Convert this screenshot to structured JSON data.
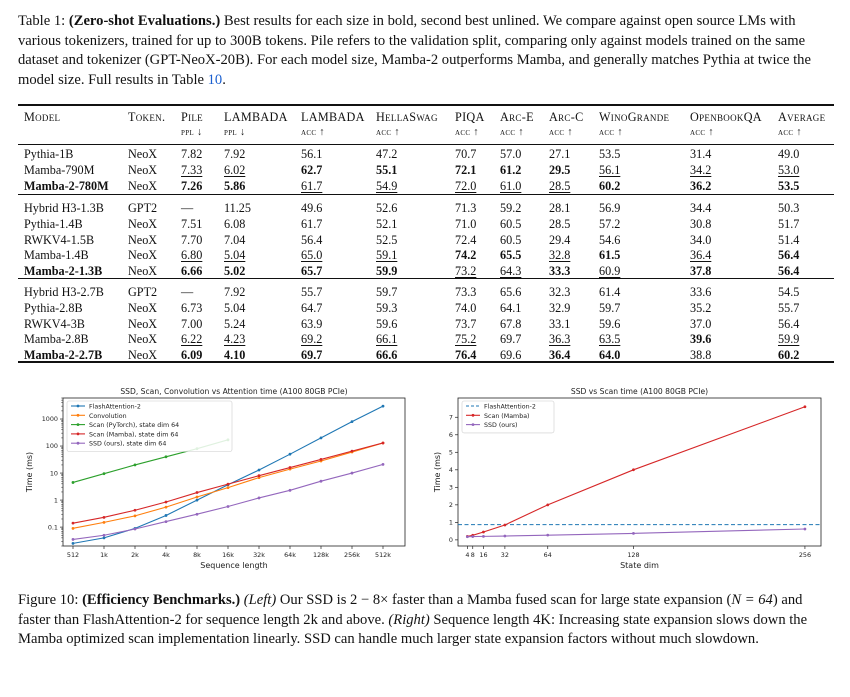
{
  "table_caption": {
    "label": "Table 1: ",
    "bold_title": "(Zero-shot Evaluations.)",
    "body": " Best results for each size in bold, second best unlined. We compare against open source LMs with various tokenizers, trained for up to 300B tokens. Pile refers to the validation split, comparing only against models trained on the same dataset and tokenizer (GPT-NeoX-20B). For each model size, Mamba-2 outperforms Mamba, and generally matches Pythia at twice the model size. Full results in Table ",
    "ref": "10",
    "end": "."
  },
  "table": {
    "headers": [
      {
        "top": "Model",
        "sub": ""
      },
      {
        "top": "Token.",
        "sub": ""
      },
      {
        "top": "Pile",
        "sub": "ppl ↓"
      },
      {
        "top": "LAMBADA",
        "sub": "ppl ↓"
      },
      {
        "top": "LAMBADA",
        "sub": "acc ↑"
      },
      {
        "top": "HellaSwag",
        "sub": "acc ↑"
      },
      {
        "top": "PIQA",
        "sub": "acc ↑"
      },
      {
        "top": "Arc-E",
        "sub": "acc ↑"
      },
      {
        "top": "Arc-C",
        "sub": "acc ↑"
      },
      {
        "top": "WinoGrande",
        "sub": "acc ↑"
      },
      {
        "top": "OpenbookQA",
        "sub": "acc ↑"
      },
      {
        "top": "Average",
        "sub": "acc ↑"
      }
    ],
    "groups": [
      [
        {
          "cells": [
            "Pythia-1B",
            "NeoX",
            "7.82",
            "7.92",
            "56.1",
            "47.2",
            "70.7",
            "57.0",
            "27.1",
            "53.5",
            "31.4",
            "49.0"
          ],
          "bold": [],
          "underline": []
        },
        {
          "cells": [
            "Mamba-790M",
            "NeoX",
            "7.33",
            "6.02",
            "62.7",
            "55.1",
            "72.1",
            "61.2",
            "29.5",
            "56.1",
            "34.2",
            "53.0"
          ],
          "bold": [
            4,
            5,
            6,
            7,
            8
          ],
          "underline": [
            2,
            3,
            9,
            10,
            11
          ]
        },
        {
          "cells": [
            "Mamba-2-780M",
            "NeoX",
            "7.26",
            "5.86",
            "61.7",
            "54.9",
            "72.0",
            "61.0",
            "28.5",
            "60.2",
            "36.2",
            "53.5"
          ],
          "bold": [
            0,
            2,
            3,
            9,
            10,
            11
          ],
          "underline": [
            4,
            5,
            6,
            7,
            8
          ]
        }
      ],
      [
        {
          "cells": [
            "Hybrid H3-1.3B",
            "GPT2",
            "—",
            "11.25",
            "49.6",
            "52.6",
            "71.3",
            "59.2",
            "28.1",
            "56.9",
            "34.4",
            "50.3"
          ],
          "bold": [],
          "underline": []
        },
        {
          "cells": [
            "Pythia-1.4B",
            "NeoX",
            "7.51",
            "6.08",
            "61.7",
            "52.1",
            "71.0",
            "60.5",
            "28.5",
            "57.2",
            "30.8",
            "51.7"
          ],
          "bold": [],
          "underline": []
        },
        {
          "cells": [
            "RWKV4-1.5B",
            "NeoX",
            "7.70",
            "7.04",
            "56.4",
            "52.5",
            "72.4",
            "60.5",
            "29.4",
            "54.6",
            "34.0",
            "51.4"
          ],
          "bold": [],
          "underline": []
        },
        {
          "cells": [
            "Mamba-1.4B",
            "NeoX",
            "6.80",
            "5.04",
            "65.0",
            "59.1",
            "74.2",
            "65.5",
            "32.8",
            "61.5",
            "36.4",
            "56.4"
          ],
          "bold": [
            6,
            7,
            9,
            11
          ],
          "underline": [
            2,
            3,
            4,
            5,
            8,
            10
          ]
        },
        {
          "cells": [
            "Mamba-2-1.3B",
            "NeoX",
            "6.66",
            "5.02",
            "65.7",
            "59.9",
            "73.2",
            "64.3",
            "33.3",
            "60.9",
            "37.8",
            "56.4"
          ],
          "bold": [
            0,
            2,
            3,
            4,
            5,
            8,
            10,
            11
          ],
          "underline": [
            6,
            7,
            9
          ]
        }
      ],
      [
        {
          "cells": [
            "Hybrid H3-2.7B",
            "GPT2",
            "—",
            "7.92",
            "55.7",
            "59.7",
            "73.3",
            "65.6",
            "32.3",
            "61.4",
            "33.6",
            "54.5"
          ],
          "bold": [],
          "underline": []
        },
        {
          "cells": [
            "Pythia-2.8B",
            "NeoX",
            "6.73",
            "5.04",
            "64.7",
            "59.3",
            "74.0",
            "64.1",
            "32.9",
            "59.7",
            "35.2",
            "55.7"
          ],
          "bold": [],
          "underline": []
        },
        {
          "cells": [
            "RWKV4-3B",
            "NeoX",
            "7.00",
            "5.24",
            "63.9",
            "59.6",
            "73.7",
            "67.8",
            "33.1",
            "59.6",
            "37.0",
            "56.4"
          ],
          "bold": [],
          "underline": []
        },
        {
          "cells": [
            "Mamba-2.8B",
            "NeoX",
            "6.22",
            "4.23",
            "69.2",
            "66.1",
            "75.2",
            "69.7",
            "36.3",
            "63.5",
            "39.6",
            "59.9"
          ],
          "bold": [
            10
          ],
          "underline": [
            2,
            3,
            4,
            5,
            6,
            8,
            9,
            11
          ]
        },
        {
          "cells": [
            "Mamba-2-2.7B",
            "NeoX",
            "6.09",
            "4.10",
            "69.7",
            "66.6",
            "76.4",
            "69.6",
            "36.4",
            "64.0",
            "38.8",
            "60.2"
          ],
          "bold": [
            0,
            2,
            3,
            4,
            5,
            6,
            8,
            9,
            11
          ],
          "underline": [
            7,
            10
          ]
        }
      ]
    ]
  },
  "chart_data": [
    {
      "type": "line",
      "title": "SSD, Scan, Convolution vs Attention time (A100 80GB PCIe)",
      "xlabel": "Sequence length",
      "ylabel": "Time (ms)",
      "yscale": "log",
      "xscale": "log2",
      "categories": [
        "512",
        "1k",
        "2k",
        "4k",
        "8k",
        "16k",
        "32k",
        "64k",
        "128k",
        "256k",
        "512k"
      ],
      "yticks": [
        "0.1",
        "1",
        "10",
        "100",
        "1000"
      ],
      "legend": "top-left",
      "series": [
        {
          "name": "FlashAttention-2",
          "color": "#1f77b4",
          "values": [
            0.025,
            0.04,
            0.09,
            0.27,
            1.0,
            3.7,
            13,
            50,
            200,
            800,
            3000
          ]
        },
        {
          "name": "Convolution",
          "color": "#ff7f0e",
          "values": [
            0.09,
            0.15,
            0.26,
            0.55,
            1.3,
            2.9,
            6.8,
            14,
            28,
            60,
            130
          ]
        },
        {
          "name": "Scan (PyTorch), state dim 64",
          "color": "#2ca02c",
          "values": [
            4.5,
            9.5,
            20,
            40,
            80,
            170,
            null,
            null,
            null,
            null,
            null
          ]
        },
        {
          "name": "Scan (Mamba), state dim 64",
          "color": "#d62728",
          "values": [
            0.14,
            0.23,
            0.42,
            0.85,
            1.9,
            3.9,
            8,
            16,
            32,
            65,
            130
          ]
        },
        {
          "name": "SSD (ours), state dim 64",
          "color": "#9467bd",
          "values": [
            0.035,
            0.05,
            0.085,
            0.16,
            0.3,
            0.58,
            1.2,
            2.3,
            5,
            10,
            21
          ]
        }
      ]
    },
    {
      "type": "line",
      "title": "SSD vs Scan time (A100 80GB PCIe)",
      "xlabel": "State dim",
      "ylabel": "Time (ms)",
      "xticks": [
        4,
        8,
        16,
        32,
        64,
        128,
        256
      ],
      "yticks": [
        0,
        1,
        2,
        3,
        4,
        5,
        6,
        7
      ],
      "xlim": [
        -3,
        268
      ],
      "ylim": [
        -0.35,
        8.1
      ],
      "legend": "top-left",
      "series": [
        {
          "name": "FlashAttention-2",
          "color": "#1f77b4",
          "dashed": true,
          "constant": 0.87
        },
        {
          "name": "Scan (Mamba)",
          "color": "#d62728",
          "x": [
            4,
            8,
            16,
            32,
            64,
            128,
            256
          ],
          "values": [
            0.2,
            0.26,
            0.45,
            0.85,
            2.0,
            4.0,
            7.6
          ]
        },
        {
          "name": "SSD (ours)",
          "color": "#9467bd",
          "x": [
            4,
            8,
            16,
            32,
            64,
            128,
            256
          ],
          "values": [
            0.18,
            0.19,
            0.2,
            0.22,
            0.27,
            0.37,
            0.62
          ]
        }
      ]
    }
  ],
  "figure_caption": {
    "label": "Figure 10: ",
    "bold_title": "(Efficiency Benchmarks.)",
    "left": "(Left)",
    "p1": " Our SSD is 2 − 8× faster than a Mamba fused scan for large state expansion (",
    "n_expr": "N = 64",
    "p2": ") and faster than FlashAttention-2 for sequence length 2k and above. ",
    "right": "(Right)",
    "p3": " Sequence length 4K: Increasing state expansion slows down the Mamba optimized scan implementation linearly. SSD can handle much larger state expansion factors without much slowdown."
  }
}
